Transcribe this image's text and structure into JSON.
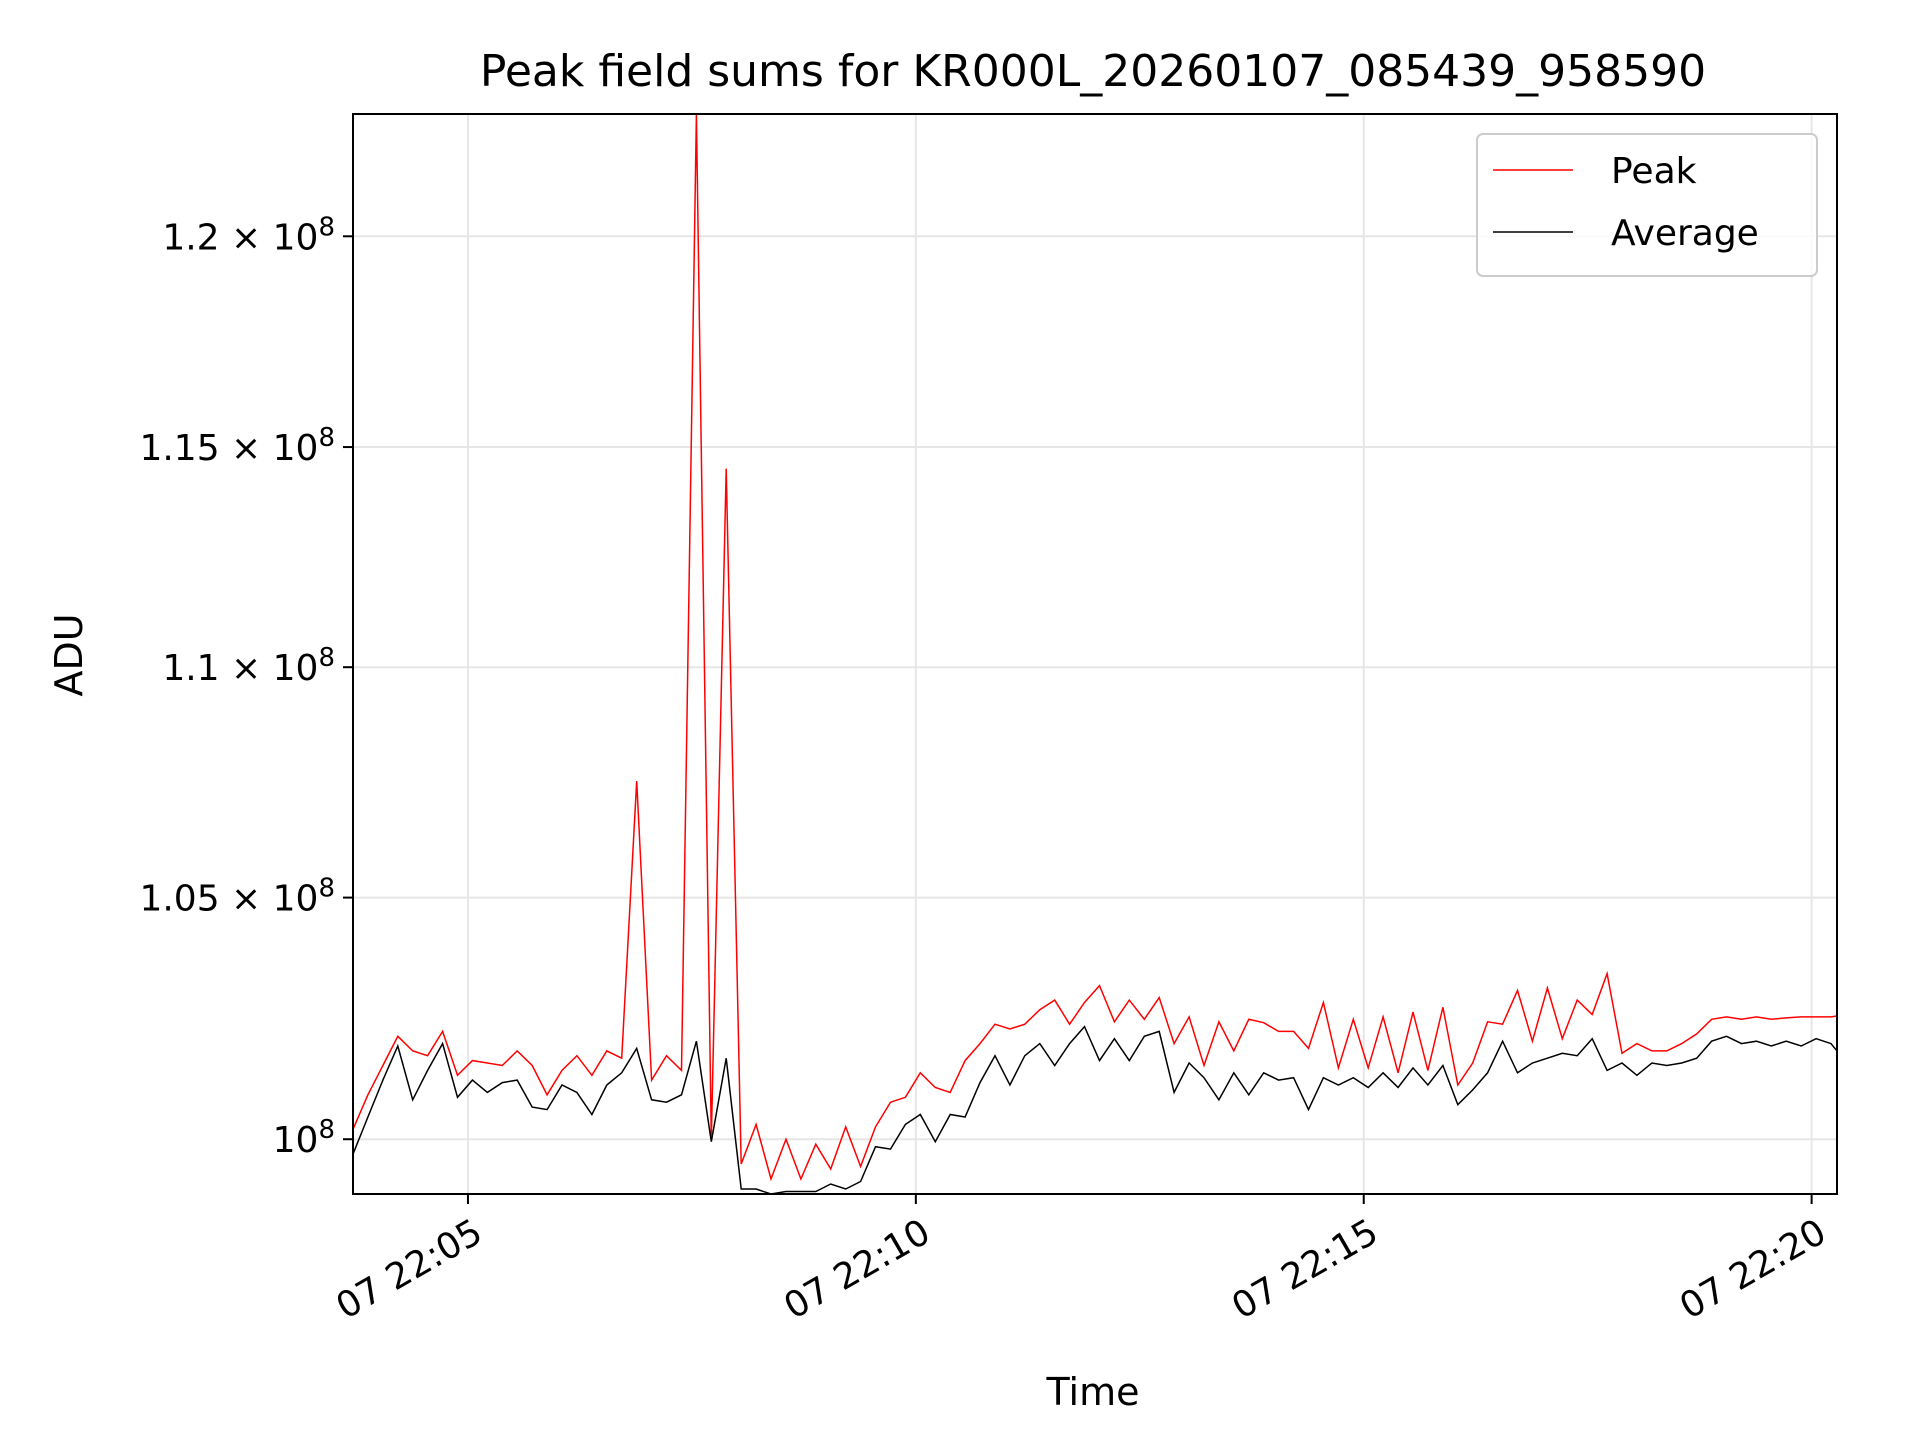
{
  "chart_data": {
    "type": "line",
    "title": "Peak field sums for KR000L_20260107_085439_958590",
    "xlabel": "Time",
    "ylabel": "ADU",
    "x_ticks": [
      "07 22:05",
      "07 22:10",
      "07 22:15",
      "07 22:20"
    ],
    "y_ticks": [
      {
        "value": 100000000,
        "mantissa": "",
        "exponent": "8"
      },
      {
        "value": 105000000,
        "mantissa": "1.05",
        "exponent": "8"
      },
      {
        "value": 110000000,
        "mantissa": "1.1",
        "exponent": "8"
      },
      {
        "value": 115000000,
        "mantissa": "1.15",
        "exponent": "8"
      },
      {
        "value": 120000000,
        "mantissa": "1.2",
        "exponent": "8"
      }
    ],
    "y_scale": "log",
    "ylim": [
      98900000,
      123000000
    ],
    "xlim": [
      "07 22:03:43",
      "07 22:20:17"
    ],
    "grid": true,
    "legend_position": "top-right",
    "x": [
      "22:03:43",
      "22:03:53",
      "22:04:03",
      "22:04:13",
      "22:04:23",
      "22:04:33",
      "22:04:43",
      "22:04:53",
      "22:05:03",
      "22:05:13",
      "22:05:23",
      "22:05:33",
      "22:05:43",
      "22:05:53",
      "22:06:03",
      "22:06:13",
      "22:06:23",
      "22:06:33",
      "22:06:43",
      "22:06:53",
      "22:07:03",
      "22:07:13",
      "22:07:23",
      "22:07:33",
      "22:07:43",
      "22:07:53",
      "22:08:03",
      "22:08:13",
      "22:08:23",
      "22:08:33",
      "22:08:43",
      "22:08:53",
      "22:09:03",
      "22:09:13",
      "22:09:23",
      "22:09:33",
      "22:09:43",
      "22:09:53",
      "22:10:03",
      "22:10:13",
      "22:10:23",
      "22:10:33",
      "22:10:43",
      "22:10:53",
      "22:11:03",
      "22:11:13",
      "22:11:23",
      "22:11:33",
      "22:11:43",
      "22:11:53",
      "22:12:03",
      "22:12:13",
      "22:12:23",
      "22:12:33",
      "22:12:43",
      "22:12:53",
      "22:13:03",
      "22:13:13",
      "22:13:23",
      "22:13:33",
      "22:13:43",
      "22:13:53",
      "22:14:03",
      "22:14:13",
      "22:14:23",
      "22:14:33",
      "22:14:43",
      "22:14:53",
      "22:15:03",
      "22:15:13",
      "22:15:23",
      "22:15:33",
      "22:15:43",
      "22:15:53",
      "22:16:03",
      "22:16:13",
      "22:16:23",
      "22:16:33",
      "22:16:43",
      "22:16:53",
      "22:17:03",
      "22:17:13",
      "22:17:23",
      "22:17:33",
      "22:17:43",
      "22:17:53",
      "22:18:03",
      "22:18:13",
      "22:18:23",
      "22:18:33",
      "22:18:43",
      "22:18:53",
      "22:19:03",
      "22:19:13",
      "22:19:23",
      "22:19:33",
      "22:19:43",
      "22:19:53",
      "22:20:03",
      "22:20:13",
      "22:20:17"
    ],
    "series": [
      {
        "name": "Peak",
        "color": "#ff0000",
        "values": [
          100200000,
          100900000,
          101500000,
          102100000,
          101800000,
          101700000,
          102200000,
          101300000,
          101600000,
          101550000,
          101500000,
          101800000,
          101500000,
          100900000,
          101400000,
          101700000,
          101300000,
          101800000,
          101650000,
          107500000,
          101200000,
          101700000,
          101400000,
          123000000,
          100000000,
          114500000,
          99500000,
          100300000,
          99200000,
          100000000,
          99200000,
          99900000,
          99400000,
          100250000,
          99450000,
          100250000,
          100750000,
          100850000,
          101350000,
          101050000,
          100950000,
          101600000,
          101950000,
          102350000,
          102250000,
          102350000,
          102650000,
          102850000,
          102350000,
          102800000,
          103150000,
          102400000,
          102850000,
          102450000,
          102900000,
          101950000,
          102500000,
          101500000,
          102400000,
          101800000,
          102450000,
          102380000,
          102200000,
          102200000,
          101850000,
          102800000,
          101450000,
          102450000,
          101450000,
          102500000,
          101350000,
          102600000,
          101400000,
          102700000,
          101100000,
          101550000,
          102400000,
          102350000,
          103050000,
          102000000,
          103100000,
          102050000,
          102850000,
          102550000,
          103400000,
          101750000,
          101950000,
          101800000,
          101800000,
          101950000,
          102150000,
          102450000,
          102500000,
          102450000,
          102500000,
          102450000,
          102480000,
          102500000,
          102500000,
          102500000,
          102520000
        ]
      },
      {
        "name": "Average",
        "color": "#000000",
        "values": [
          99700000,
          100450000,
          101200000,
          101900000,
          100800000,
          101400000,
          101950000,
          100850000,
          101200000,
          100950000,
          101150000,
          101200000,
          100650000,
          100600000,
          101100000,
          100950000,
          100500000,
          101100000,
          101350000,
          101850000,
          100800000,
          100750000,
          100900000,
          102000000,
          99950000,
          101650000,
          99000000,
          99000000,
          98900000,
          98950000,
          98950000,
          98950000,
          99100000,
          99000000,
          99150000,
          99850000,
          99800000,
          100300000,
          100500000,
          99950000,
          100500000,
          100450000,
          101150000,
          101700000,
          101100000,
          101700000,
          101950000,
          101500000,
          101950000,
          102300000,
          101600000,
          102050000,
          101600000,
          102100000,
          102200000,
          100950000,
          101550000,
          101250000,
          100800000,
          101350000,
          100900000,
          101350000,
          101200000,
          101250000,
          100600000,
          101250000,
          101100000,
          101250000,
          101050000,
          101350000,
          101050000,
          101450000,
          101100000,
          101500000,
          100700000,
          101000000,
          101350000,
          102000000,
          101350000,
          101550000,
          101650000,
          101750000,
          101700000,
          102050000,
          101400000,
          101550000,
          101300000,
          101550000,
          101500000,
          101550000,
          101650000,
          102000000,
          102100000,
          101950000,
          102000000,
          101900000,
          102000000,
          101900000,
          102050000,
          101950000,
          101800000
        ]
      }
    ]
  }
}
